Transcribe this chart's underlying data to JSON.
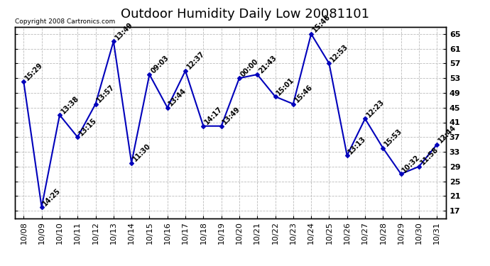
{
  "title": "Outdoor Humidity Daily Low 20081101",
  "copyright": "Copyright 2008 Cartronics.com",
  "dates": [
    "10/08",
    "10/09",
    "10/10",
    "10/11",
    "10/12",
    "10/13",
    "10/14",
    "10/15",
    "10/16",
    "10/17",
    "10/18",
    "10/19",
    "10/20",
    "10/21",
    "10/22",
    "10/23",
    "10/24",
    "10/25",
    "10/26",
    "10/27",
    "10/28",
    "10/29",
    "10/30",
    "10/31"
  ],
  "values": [
    52,
    18,
    43,
    37,
    46,
    63,
    30,
    54,
    45,
    55,
    40,
    40,
    53,
    54,
    48,
    46,
    65,
    57,
    32,
    42,
    34,
    27,
    29,
    35
  ],
  "labels": [
    "15:29",
    "14:25",
    "13:38",
    "13:15",
    "13:57",
    "13:49",
    "11:30",
    "09:03",
    "13:44",
    "12:37",
    "14:17",
    "13:49",
    "00:00",
    "21:43",
    "15:01",
    "15:46",
    "15:46",
    "12:53",
    "13:13",
    "12:23",
    "15:53",
    "10:32",
    "11:58",
    "12:44"
  ],
  "line_color": "#0000bb",
  "marker_color": "#0000bb",
  "bg_color": "#ffffff",
  "grid_color": "#bbbbbb",
  "ylim": [
    15,
    67
  ],
  "yticks": [
    17,
    21,
    25,
    29,
    33,
    37,
    41,
    45,
    49,
    53,
    57,
    61,
    65
  ],
  "title_fontsize": 13,
  "label_fontsize": 7,
  "copyright_fontsize": 6.5,
  "tick_fontsize": 8
}
